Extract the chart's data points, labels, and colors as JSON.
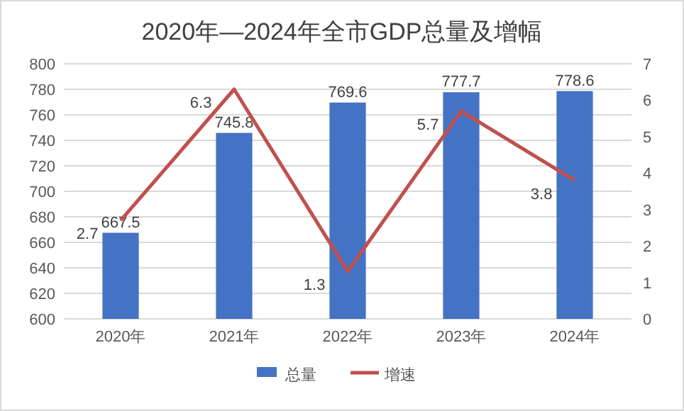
{
  "chart_data": {
    "type": "bar",
    "title": "2020年—2024年全市GDP总量及增幅",
    "categories": [
      "2020年",
      "2021年",
      "2022年",
      "2023年",
      "2024年"
    ],
    "series": [
      {
        "name": "总量",
        "color": "#4472c4",
        "values": [
          667.5,
          745.8,
          769.6,
          777.7,
          778.6
        ]
      },
      {
        "name": "增速",
        "type": "line",
        "axis": "y2",
        "color": "#c0504d",
        "values": [
          2.7,
          6.3,
          1.3,
          5.7,
          3.8
        ]
      }
    ],
    "ylim": [
      600,
      800
    ],
    "yticks": [
      600,
      620,
      640,
      660,
      680,
      700,
      720,
      740,
      760,
      780,
      800
    ],
    "y2lim": [
      0,
      7
    ],
    "y2ticks": [
      0,
      1,
      2,
      3,
      4,
      5,
      6,
      7
    ],
    "grid": "y",
    "legend": "bottom",
    "data_labels": true,
    "marker": "none",
    "line_style": "solid"
  }
}
